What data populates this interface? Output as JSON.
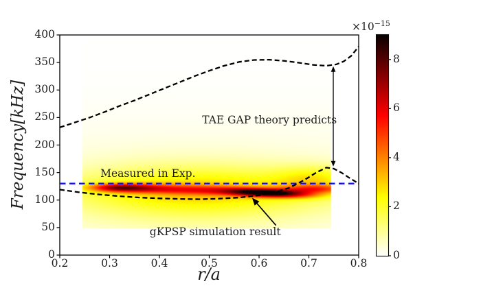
{
  "chart_data": {
    "type": "heatmap",
    "title": "",
    "xlabel": "r/a",
    "ylabel": "Frequency[kHz]",
    "xlim": [
      0.2,
      0.8
    ],
    "ylim": [
      0,
      400
    ],
    "x_ticks": {
      "values": [
        0.2,
        0.3,
        0.4,
        0.5,
        0.6,
        0.7,
        0.8
      ],
      "labels": [
        "0.2",
        "0.3",
        "0.4",
        "0.5",
        "0.6",
        "0.7",
        "0.8"
      ]
    },
    "y_ticks": {
      "values": [
        0,
        50,
        100,
        150,
        200,
        250,
        300,
        350,
        400
      ],
      "labels": [
        "0",
        "50",
        "100",
        "150",
        "200",
        "250",
        "300",
        "350",
        "400"
      ]
    },
    "colorbar": {
      "coefficient": "×10",
      "exponent": "−15",
      "tick_values": [
        0,
        2,
        4,
        6,
        8
      ],
      "tick_labels": [
        "0",
        "2",
        "4",
        "6",
        "8"
      ],
      "vmin": 0,
      "vmax": 9,
      "colormap": "hot_r"
    },
    "heatmap": {
      "extent_r": [
        0.245,
        0.745
      ],
      "extent_f": [
        48,
        400
      ],
      "background": {
        "a": 0.32,
        "f": 115,
        "sf": 95
      },
      "blobs": [
        {
          "r": 0.47,
          "f": 112,
          "sr": 0.17,
          "sf": 40,
          "a": 1.5,
          "slope": 0
        },
        {
          "r": 0.5,
          "f": 118,
          "sr": 0.22,
          "sf": 26,
          "a": 1.3,
          "slope": 0
        },
        {
          "r": 0.33,
          "f": 122,
          "sr": 0.05,
          "sf": 5.5,
          "a": 4.6,
          "slope": -8
        },
        {
          "r": 0.31,
          "f": 122.5,
          "sr": 0.028,
          "sf": 4,
          "a": 1.0,
          "slope": 0
        },
        {
          "r": 0.455,
          "f": 118.5,
          "sr": 0.07,
          "sf": 6,
          "a": 2.6,
          "slope": -15
        },
        {
          "r": 0.615,
          "f": 113,
          "sr": 0.058,
          "sf": 5.2,
          "a": 7.6,
          "slope": -35
        },
        {
          "r": 0.715,
          "f": 120,
          "sr": 0.05,
          "sf": 5.5,
          "a": 3.0,
          "slope": 0
        },
        {
          "r": 0.71,
          "f": 139,
          "sr": 0.055,
          "sf": 16,
          "a": 1.5,
          "slope": 0
        }
      ]
    },
    "curves": [
      {
        "name": "tae-gap-upper-boundary",
        "color": "#000000",
        "style": "dashed",
        "points": [
          [
            0.2,
            232
          ],
          [
            0.23,
            241
          ],
          [
            0.26,
            250
          ],
          [
            0.29,
            260
          ],
          [
            0.32,
            271
          ],
          [
            0.35,
            281
          ],
          [
            0.38,
            292
          ],
          [
            0.41,
            303
          ],
          [
            0.44,
            314
          ],
          [
            0.47,
            325
          ],
          [
            0.5,
            335
          ],
          [
            0.53,
            344
          ],
          [
            0.56,
            351
          ],
          [
            0.59,
            354.5
          ],
          [
            0.62,
            355
          ],
          [
            0.65,
            353
          ],
          [
            0.68,
            349.5
          ],
          [
            0.71,
            345.5
          ],
          [
            0.735,
            344
          ],
          [
            0.755,
            346.5
          ],
          [
            0.77,
            352
          ],
          [
            0.785,
            362
          ],
          [
            0.8,
            379
          ]
        ]
      },
      {
        "name": "tae-gap-lower-boundary",
        "color": "#000000",
        "style": "dashed",
        "points": [
          [
            0.2,
            119
          ],
          [
            0.24,
            114
          ],
          [
            0.28,
            110
          ],
          [
            0.32,
            107
          ],
          [
            0.36,
            104.5
          ],
          [
            0.4,
            103
          ],
          [
            0.44,
            102
          ],
          [
            0.48,
            101.5
          ],
          [
            0.52,
            102.5
          ],
          [
            0.56,
            104.5
          ],
          [
            0.6,
            108.5
          ],
          [
            0.63,
            114
          ],
          [
            0.66,
            122
          ],
          [
            0.69,
            136
          ],
          [
            0.715,
            150
          ],
          [
            0.735,
            159
          ],
          [
            0.75,
            157
          ],
          [
            0.765,
            150
          ],
          [
            0.78,
            141
          ],
          [
            0.8,
            130
          ]
        ]
      }
    ],
    "exp_line": {
      "f": 130,
      "color": "#0d0dff",
      "style": "dashed",
      "r_range": [
        0.2,
        0.8
      ]
    },
    "annotations": [
      {
        "id": "measured-in-exp-label",
        "text": "Measured in Exp.",
        "r": 0.377,
        "f": 148
      },
      {
        "id": "tae-gap-theory-label",
        "text": "TAE GAP theory predicts",
        "r": 0.621,
        "f": 245
      },
      {
        "id": "gkpsp-result-label",
        "text": "gKPSP simulation result",
        "r": 0.512,
        "f": 42
      }
    ],
    "arrows": [
      {
        "id": "gap-extent-arrow",
        "type": "double",
        "r": 0.749,
        "f_from": 161,
        "f_to": 343
      },
      {
        "id": "gkpsp-pointer-arrow",
        "type": "single",
        "from": {
          "r": 0.634,
          "f": 54
        },
        "to": {
          "r": 0.586,
          "f": 104
        }
      }
    ]
  }
}
